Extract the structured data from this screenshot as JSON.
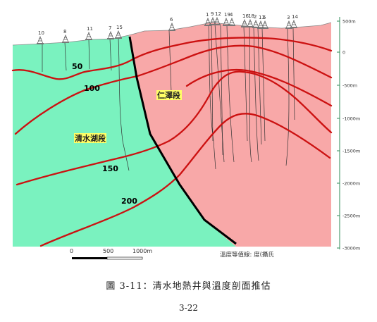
{
  "zones": {
    "west": {
      "label": "清水湖段",
      "color": "#7af2bf"
    },
    "east": {
      "label": "仁澤段",
      "color": "#f8a8a8"
    }
  },
  "label_bg": "#ffff66",
  "isotherm_color": "#cc1111",
  "isotherms": [
    {
      "label": "50"
    },
    {
      "label": "100"
    },
    {
      "label": "150"
    },
    {
      "label": "200"
    }
  ],
  "wells": [
    "10",
    "8",
    "11",
    "7",
    "15",
    "6",
    "1",
    "9",
    "12",
    "19",
    "4",
    "16",
    "18",
    "2",
    "13",
    "5",
    "3",
    "14"
  ],
  "depth_axis": {
    "ticks": [
      "500m",
      "0",
      "-500m",
      "-1000m",
      "-1500m",
      "-2000m",
      "-2500m",
      "-3000m"
    ]
  },
  "scale_bar": {
    "labels": [
      "0",
      "500",
      "1000m"
    ]
  },
  "legend_note": "溫度等值線: 度(攝氏",
  "caption": "圖 3-11：清水地熱井與溫度剖面推估",
  "page_number": "3-22"
}
